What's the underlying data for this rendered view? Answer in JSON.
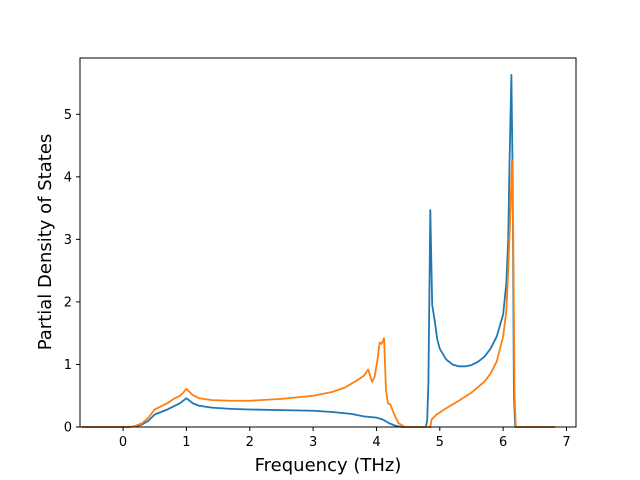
{
  "chart_data": {
    "type": "line",
    "title": "",
    "xlabel": "Frequency (THz)",
    "ylabel": "Partial Density of States",
    "xlim": [
      -0.68,
      7.15
    ],
    "ylim": [
      0,
      5.9
    ],
    "xticks": [
      0,
      1,
      2,
      3,
      4,
      5,
      6,
      7
    ],
    "yticks": [
      0,
      1,
      2,
      3,
      4,
      5
    ],
    "xtick_labels": [
      "0",
      "1",
      "2",
      "3",
      "4",
      "5",
      "6",
      "7"
    ],
    "ytick_labels": [
      "0",
      "1",
      "2",
      "3",
      "4",
      "5"
    ],
    "grid": false,
    "legend": "none",
    "series": [
      {
        "color": "#1f77b4",
        "points": [
          [
            -0.65,
            0
          ],
          [
            0.1,
            0
          ],
          [
            0.2,
            0.01
          ],
          [
            0.3,
            0.04
          ],
          [
            0.4,
            0.1
          ],
          [
            0.5,
            0.2
          ],
          [
            0.6,
            0.24
          ],
          [
            0.7,
            0.28
          ],
          [
            0.8,
            0.33
          ],
          [
            0.9,
            0.38
          ],
          [
            0.95,
            0.42
          ],
          [
            1.0,
            0.46
          ],
          [
            1.05,
            0.42
          ],
          [
            1.1,
            0.38
          ],
          [
            1.2,
            0.34
          ],
          [
            1.4,
            0.31
          ],
          [
            1.7,
            0.29
          ],
          [
            2.0,
            0.28
          ],
          [
            2.5,
            0.27
          ],
          [
            3.0,
            0.26
          ],
          [
            3.3,
            0.24
          ],
          [
            3.6,
            0.21
          ],
          [
            3.8,
            0.17
          ],
          [
            4.0,
            0.15
          ],
          [
            4.1,
            0.12
          ],
          [
            4.2,
            0.06
          ],
          [
            4.3,
            0.02
          ],
          [
            4.4,
            0
          ],
          [
            4.78,
            0
          ],
          [
            4.8,
            0.1
          ],
          [
            4.82,
            0.7
          ],
          [
            4.85,
            3.47
          ],
          [
            4.88,
            1.95
          ],
          [
            4.92,
            1.7
          ],
          [
            4.96,
            1.4
          ],
          [
            5.0,
            1.25
          ],
          [
            5.1,
            1.08
          ],
          [
            5.2,
            1.0
          ],
          [
            5.3,
            0.97
          ],
          [
            5.4,
            0.97
          ],
          [
            5.5,
            0.99
          ],
          [
            5.6,
            1.04
          ],
          [
            5.7,
            1.12
          ],
          [
            5.8,
            1.25
          ],
          [
            5.9,
            1.45
          ],
          [
            6.0,
            1.8
          ],
          [
            6.05,
            2.3
          ],
          [
            6.08,
            3.0
          ],
          [
            6.1,
            4.2
          ],
          [
            6.13,
            5.63
          ],
          [
            6.15,
            4.0
          ],
          [
            6.17,
            0.5
          ],
          [
            6.19,
            0
          ],
          [
            6.82,
            0
          ]
        ]
      },
      {
        "color": "#ff7f0e",
        "points": [
          [
            -0.65,
            0
          ],
          [
            0.1,
            0
          ],
          [
            0.2,
            0.02
          ],
          [
            0.3,
            0.06
          ],
          [
            0.4,
            0.15
          ],
          [
            0.5,
            0.28
          ],
          [
            0.6,
            0.33
          ],
          [
            0.7,
            0.38
          ],
          [
            0.8,
            0.45
          ],
          [
            0.9,
            0.5
          ],
          [
            0.95,
            0.55
          ],
          [
            1.0,
            0.61
          ],
          [
            1.05,
            0.56
          ],
          [
            1.1,
            0.51
          ],
          [
            1.2,
            0.46
          ],
          [
            1.4,
            0.43
          ],
          [
            1.7,
            0.42
          ],
          [
            2.0,
            0.42
          ],
          [
            2.5,
            0.45
          ],
          [
            3.0,
            0.5
          ],
          [
            3.3,
            0.56
          ],
          [
            3.5,
            0.63
          ],
          [
            3.7,
            0.75
          ],
          [
            3.8,
            0.82
          ],
          [
            3.87,
            0.92
          ],
          [
            3.93,
            0.72
          ],
          [
            3.97,
            0.8
          ],
          [
            4.02,
            1.1
          ],
          [
            4.05,
            1.35
          ],
          [
            4.08,
            1.33
          ],
          [
            4.12,
            1.42
          ],
          [
            4.15,
            0.6
          ],
          [
            4.18,
            0.38
          ],
          [
            4.22,
            0.36
          ],
          [
            4.28,
            0.2
          ],
          [
            4.35,
            0.06
          ],
          [
            4.45,
            0
          ],
          [
            4.85,
            0
          ],
          [
            4.87,
            0.12
          ],
          [
            4.95,
            0.2
          ],
          [
            5.1,
            0.3
          ],
          [
            5.3,
            0.42
          ],
          [
            5.5,
            0.55
          ],
          [
            5.7,
            0.72
          ],
          [
            5.8,
            0.85
          ],
          [
            5.9,
            1.05
          ],
          [
            6.0,
            1.45
          ],
          [
            6.05,
            1.85
          ],
          [
            6.08,
            2.5
          ],
          [
            6.11,
            3.3
          ],
          [
            6.14,
            4.27
          ],
          [
            6.16,
            3.0
          ],
          [
            6.18,
            0.5
          ],
          [
            6.2,
            0
          ],
          [
            6.82,
            0
          ]
        ]
      }
    ]
  }
}
